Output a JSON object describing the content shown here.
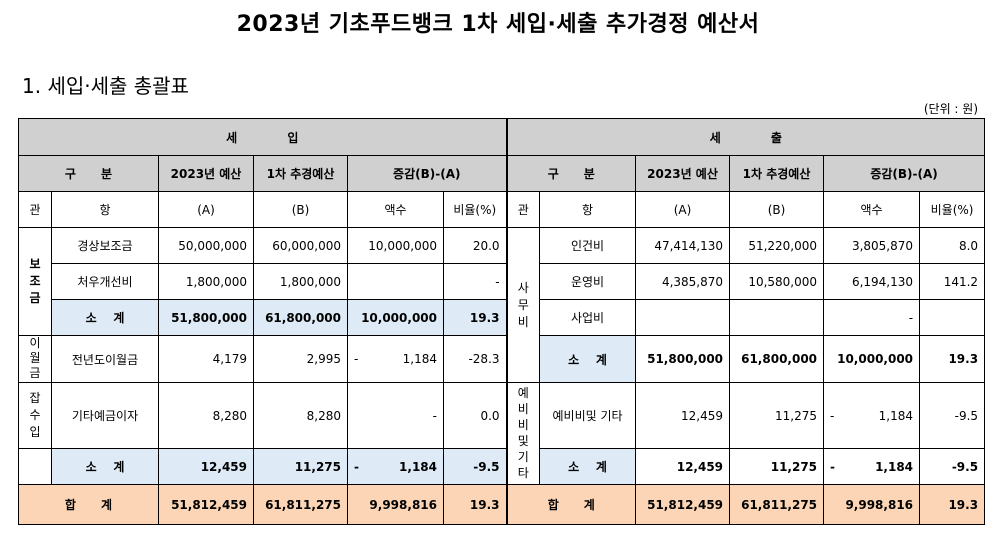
{
  "title": "2023년 기초푸드뱅크 1차 세입·세출 추가경정 예산서",
  "subtitle": "1. 세입·세출 총괄표",
  "unit": "(단위 : 원)",
  "headers": {
    "revenue": "세            입",
    "expense": "세            출",
    "gubun": "구      분",
    "budget2023": "2023년 예산",
    "revised1": "1차 추경예산",
    "diff": "증감(B)-(A)",
    "gwan": "관",
    "hang": "항",
    "a": "(A)",
    "b": "(B)",
    "amount": "액수",
    "ratio": "비율(%)"
  },
  "revenue": {
    "subsidy_group": "보조금",
    "rows": [
      {
        "hang": "경상보조금",
        "a": "50,000,000",
        "b": "60,000,000",
        "amount": "10,000,000",
        "ratio": "20.0"
      },
      {
        "hang": "처우개선비",
        "a": "1,800,000",
        "b": "1,800,000",
        "amount": "",
        "ratio": "-"
      }
    ],
    "subsidy_subtotal": {
      "label": "소    계",
      "a": "51,800,000",
      "b": "61,800,000",
      "amount": "10,000,000",
      "ratio": "19.3"
    },
    "carryover_group": "이월금",
    "carryover": {
      "hang": "전년도이월금",
      "a": "4,179",
      "b": "2,995",
      "sign": "-",
      "amount": "1,184",
      "ratio": "-28.3"
    },
    "misc_group": "잡수입",
    "misc": {
      "hang": "기타예금이자",
      "a": "8,280",
      "b": "8,280",
      "amount": "-",
      "ratio": "0.0"
    },
    "misc_subtotal": {
      "label": "소    계",
      "a": "12,459",
      "b": "11,275",
      "sign": "-",
      "amount": "1,184",
      "ratio": "-9.5"
    },
    "total": {
      "label": "합      계",
      "a": "51,812,459",
      "b": "61,811,275",
      "amount": "9,998,816",
      "ratio": "19.3"
    }
  },
  "expense": {
    "office_group": "사무비",
    "rows": [
      {
        "hang": "인건비",
        "a": "47,414,130",
        "b": "51,220,000",
        "amount": "3,805,870",
        "ratio": "8.0"
      },
      {
        "hang": "운영비",
        "a": "4,385,870",
        "b": "10,580,000",
        "amount": "6,194,130",
        "ratio": "141.2"
      },
      {
        "hang": "사업비",
        "a": "",
        "b": "",
        "amount": "-",
        "ratio": ""
      }
    ],
    "office_subtotal": {
      "label": "소    계",
      "a": "51,800,000",
      "b": "61,800,000",
      "amount": "10,000,000",
      "ratio": "19.3"
    },
    "reserve_group": "예비비및기타",
    "reserve": {
      "hang": "예비비및 기타",
      "a": "12,459",
      "b": "11,275",
      "sign": "-",
      "amount": "1,184",
      "ratio": "-9.5"
    },
    "reserve_subtotal": {
      "label": "소    계",
      "a": "12,459",
      "b": "11,275",
      "sign": "-",
      "amount": "1,184",
      "ratio": "-9.5"
    },
    "total": {
      "label": "합      계",
      "a": "51,812,459",
      "b": "61,811,275",
      "amount": "9,998,816",
      "ratio": "19.3"
    }
  }
}
